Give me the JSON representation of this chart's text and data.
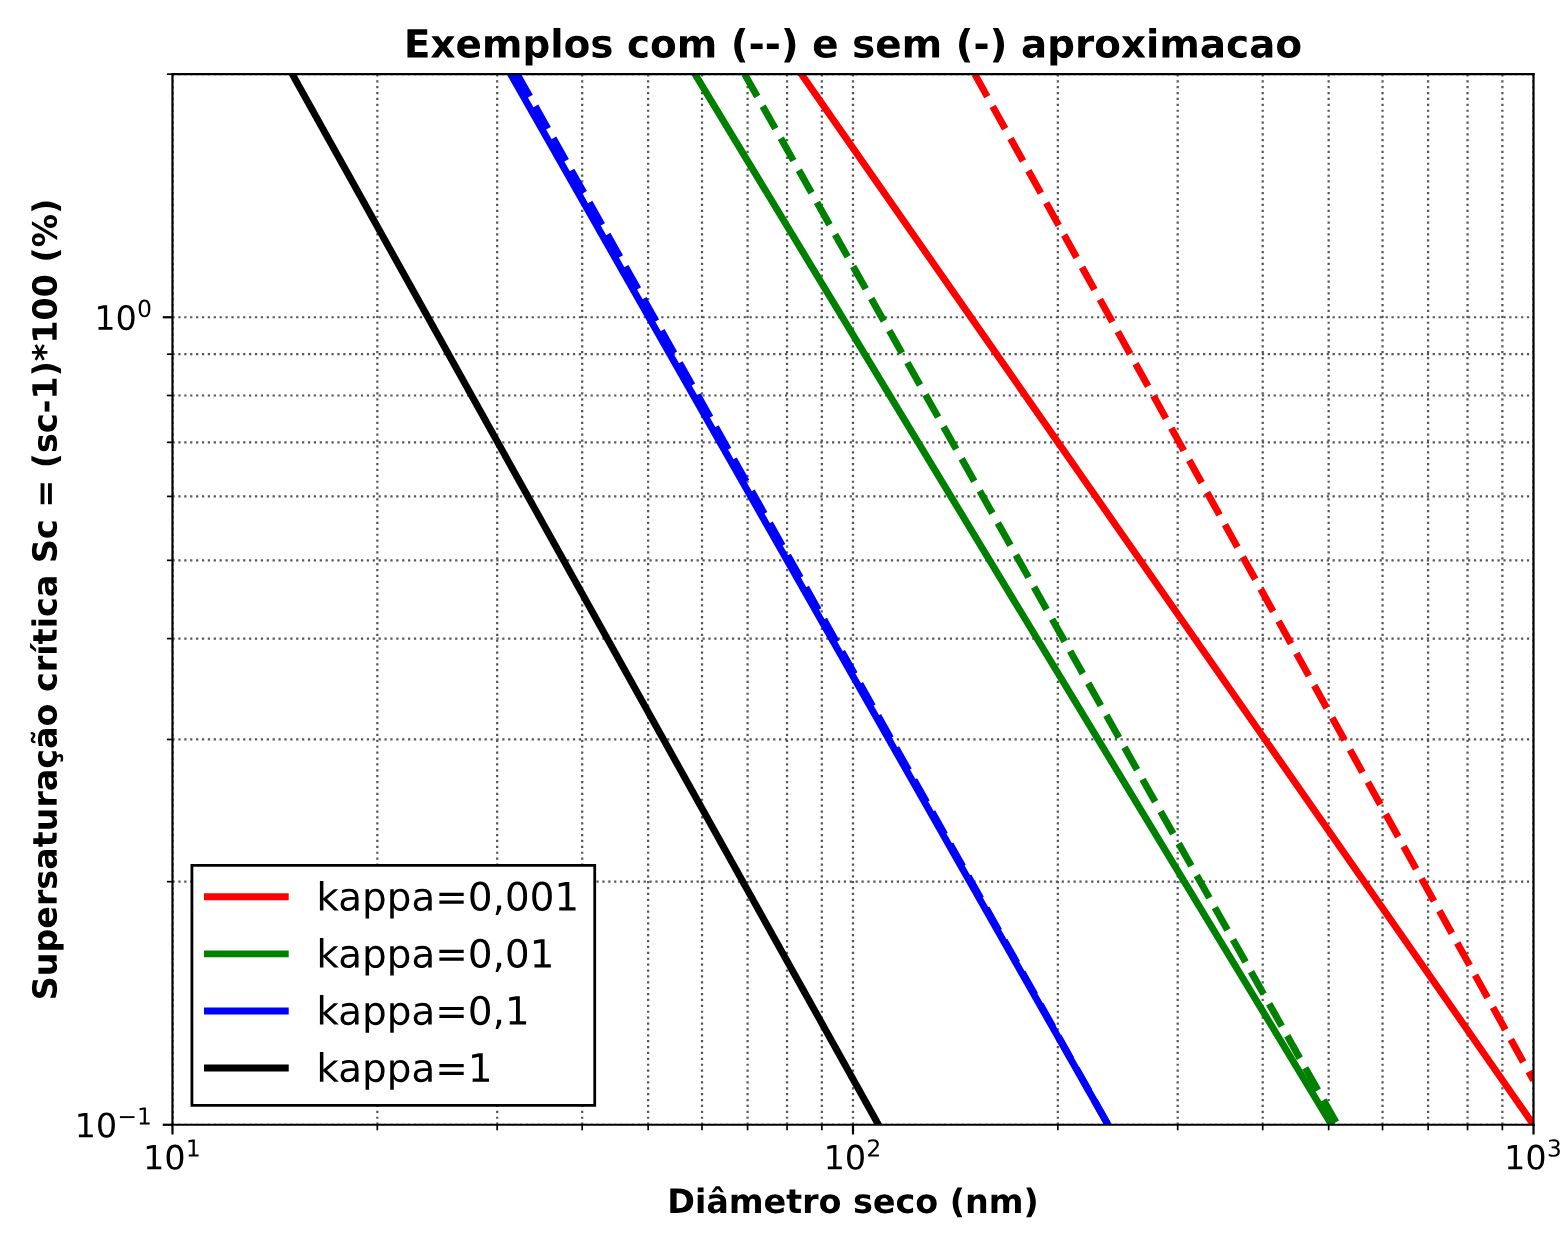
{
  "chart_data": {
    "type": "line",
    "title": "Exemplos com (--) e sem (-) aproximacao",
    "xlabel": "Diâmetro seco (nm)",
    "ylabel": "Supersaturação crítica Sc = (sc-1)*100 (%)",
    "log": "xy",
    "xlim": [
      10,
      1000
    ],
    "ylim": [
      0.1,
      2
    ],
    "xticks": [
      {
        "value": 10,
        "label": "10$^{1}$"
      },
      {
        "value": 100,
        "label": "10$^{2}$"
      },
      {
        "value": 1000,
        "label": "10$^{3}$"
      }
    ],
    "yticks": [
      {
        "value": 0.1,
        "label": "10$^{−1}$"
      },
      {
        "value": 1,
        "label": "10$^{0}$"
      }
    ],
    "grid": true,
    "legend": "bottom left",
    "marker": "none",
    "series": [
      {
        "name": "kappa=0,001",
        "color": "#ff0000",
        "line_style": "solid",
        "x": [
          84,
          1000
        ],
        "values": [
          2,
          0.1
        ]
      },
      {
        "name": "kappa=0,01",
        "color": "#008000",
        "line_style": "solid",
        "x": [
          58.6,
          505
        ],
        "values": [
          2,
          0.1
        ]
      },
      {
        "name": "kappa=0,1",
        "color": "#0000ff",
        "line_style": "solid",
        "x": [
          31.4,
          237
        ],
        "values": [
          2,
          0.1
        ]
      },
      {
        "name": "kappa=1",
        "color": "#000000",
        "line_style": "solid",
        "x": [
          15,
          109
        ],
        "values": [
          2,
          0.1
        ]
      },
      {
        "color": "#ff0000",
        "line_style": "dashed",
        "x": [
          151,
          1000
        ],
        "values": [
          2,
          0.1135
        ]
      },
      {
        "color": "#008000",
        "line_style": "dashed",
        "x": [
          69.3,
          515
        ],
        "values": [
          2,
          0.1
        ]
      },
      {
        "color": "#0000ff",
        "line_style": "dashed",
        "x": [
          32.1,
          237
        ],
        "values": [
          2,
          0.1
        ]
      }
    ]
  }
}
